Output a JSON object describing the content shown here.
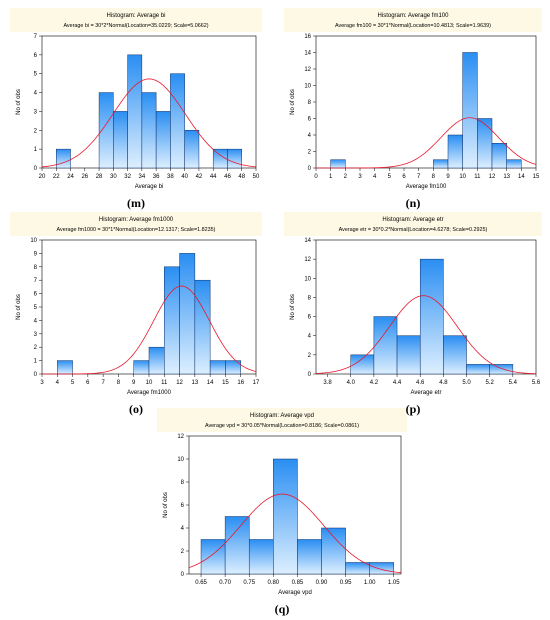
{
  "chart_data": [
    {
      "type": "bar",
      "panel": "(m)",
      "title": "Histogram: Average bi",
      "subtitle": "Average bi = 30*2*Normal(Location=35.0229; Scale=5.0662)",
      "xlabel": "Average bi",
      "ylabel": "No of obs",
      "bin_edges": [
        22,
        24,
        26,
        28,
        30,
        32,
        34,
        36,
        38,
        40,
        42,
        44,
        46,
        48
      ],
      "values": [
        1,
        0,
        0,
        4,
        3,
        6,
        4,
        3,
        5,
        2,
        0,
        1,
        1
      ],
      "xlim": [
        20,
        50
      ],
      "xticks": [
        20,
        22,
        24,
        26,
        28,
        30,
        32,
        34,
        36,
        38,
        40,
        42,
        44,
        46,
        48,
        50
      ],
      "ylim": [
        0,
        7
      ],
      "yticks": [
        0,
        1,
        2,
        3,
        4,
        5,
        6,
        7
      ],
      "normal_curve": {
        "n": 30,
        "bin_width": 2,
        "location": 35.0229,
        "scale": 5.0662
      }
    },
    {
      "type": "bar",
      "panel": "(n)",
      "title": "Histogram: Average fm100",
      "subtitle": "Average fm100 = 30*1*Normal(Location=10.4813; Scale=1.9639)",
      "xlabel": "Average fm100",
      "ylabel": "No of obs",
      "bin_edges": [
        1,
        2,
        3,
        4,
        5,
        6,
        7,
        8,
        9,
        10,
        11,
        12,
        13,
        14
      ],
      "values": [
        1,
        0,
        0,
        0,
        0,
        0,
        0,
        1,
        4,
        14,
        6,
        3,
        1
      ],
      "xlim": [
        0,
        15
      ],
      "xticks": [
        0,
        1,
        2,
        3,
        4,
        5,
        6,
        7,
        8,
        9,
        10,
        11,
        12,
        13,
        14,
        15
      ],
      "ylim": [
        0,
        16
      ],
      "yticks": [
        0,
        2,
        4,
        6,
        8,
        10,
        12,
        14,
        16
      ],
      "normal_curve": {
        "n": 30,
        "bin_width": 1,
        "location": 10.4813,
        "scale": 1.9639
      }
    },
    {
      "type": "bar",
      "panel": "(o)",
      "title": "Histogram: Average fm1000",
      "subtitle": "Average fm1000 = 30*1*Normal(Location=12.1317; Scale=1.8235)",
      "xlabel": "Average fm1000",
      "ylabel": "No of obs",
      "bin_edges": [
        4,
        5,
        6,
        7,
        8,
        9,
        10,
        11,
        12,
        13,
        14,
        15,
        16
      ],
      "values": [
        1,
        0,
        0,
        0,
        0,
        1,
        2,
        8,
        9,
        7,
        1,
        1
      ],
      "xlim": [
        3,
        17
      ],
      "xticks": [
        3,
        4,
        5,
        6,
        7,
        8,
        9,
        10,
        11,
        12,
        13,
        14,
        15,
        16,
        17
      ],
      "ylim": [
        0,
        10
      ],
      "yticks": [
        0,
        1,
        2,
        3,
        4,
        5,
        6,
        7,
        8,
        9,
        10
      ],
      "normal_curve": {
        "n": 30,
        "bin_width": 1,
        "location": 12.1317,
        "scale": 1.8235
      }
    },
    {
      "type": "bar",
      "panel": "(p)",
      "title": "Histogram: Average etr",
      "subtitle": "Average etr = 30*0.2*Normal(Location=4.6278; Scale=0.2925)",
      "xlabel": "Average etr",
      "ylabel": "No of obs",
      "bin_edges": [
        4.0,
        4.2,
        4.4,
        4.6,
        4.8,
        5.0,
        5.2,
        5.4
      ],
      "values": [
        2,
        6,
        4,
        12,
        4,
        1,
        1
      ],
      "xlim": [
        3.7,
        5.6
      ],
      "xticks": [
        3.8,
        4.0,
        4.2,
        4.4,
        4.6,
        4.8,
        5.0,
        5.2,
        5.4,
        5.6
      ],
      "xtick_labels": [
        "3.8",
        "4.0",
        "4.2",
        "4.4",
        "4.6",
        "4.8",
        "5.0",
        "5.2",
        "5.4",
        "5.6"
      ],
      "ylim": [
        0,
        14
      ],
      "yticks": [
        0,
        2,
        4,
        6,
        8,
        10,
        12,
        14
      ],
      "normal_curve": {
        "n": 30,
        "bin_width": 0.2,
        "location": 4.6278,
        "scale": 0.2925
      }
    },
    {
      "type": "bar",
      "panel": "(q)",
      "title": "Histogram: Average vpd",
      "subtitle": "Average vpd = 30*0.05*Normal(Location=0.8186; Scale=0.0861)",
      "xlabel": "Average vpd",
      "ylabel": "No of obs",
      "bin_edges": [
        0.65,
        0.7,
        0.75,
        0.8,
        0.85,
        0.9,
        0.95,
        1.0,
        1.05
      ],
      "values": [
        3,
        5,
        3,
        10,
        3,
        4,
        1,
        1
      ],
      "xlim": [
        0.625,
        1.065
      ],
      "xticks": [
        0.65,
        0.7,
        0.75,
        0.8,
        0.85,
        0.9,
        0.95,
        1.0,
        1.05
      ],
      "xtick_labels": [
        "0.65",
        "0.70",
        "0.75",
        "0.80",
        "0.85",
        "0.90",
        "0.95",
        "1.00",
        "1.05"
      ],
      "ylim": [
        0,
        12
      ],
      "yticks": [
        0,
        2,
        4,
        6,
        8,
        10,
        12
      ],
      "normal_curve": {
        "n": 30,
        "bin_width": 0.05,
        "location": 0.8186,
        "scale": 0.0861
      }
    }
  ]
}
